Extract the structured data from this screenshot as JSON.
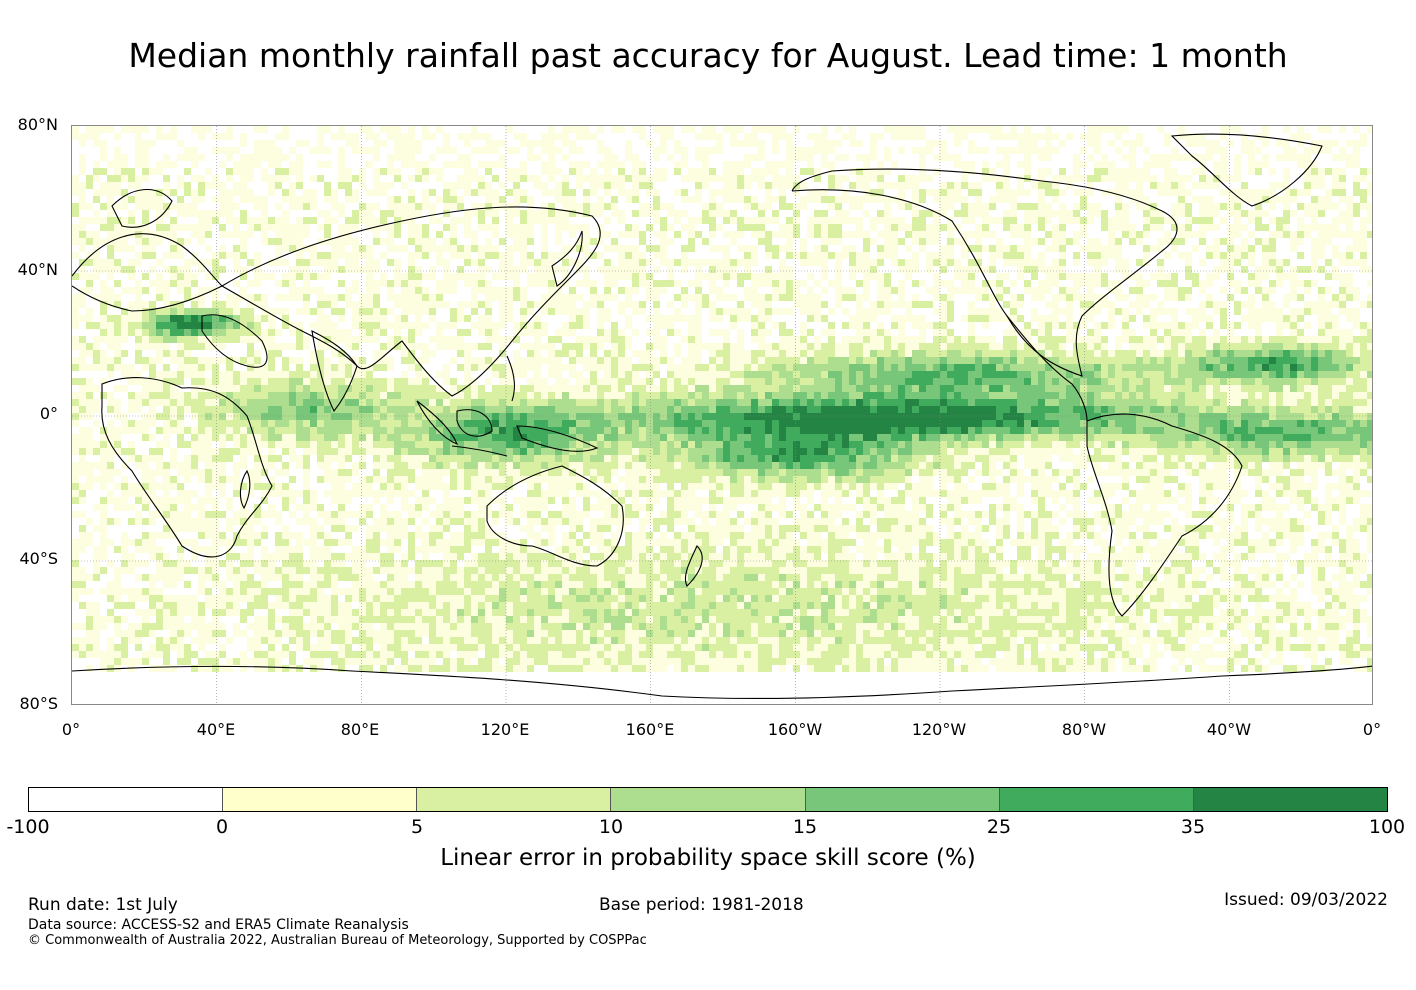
{
  "title": "Median monthly rainfall past accuracy for August. Lead time: 1 month",
  "map": {
    "lat_labels": [
      "80°N",
      "40°N",
      "0°",
      "40°S",
      "80°S"
    ],
    "lon_labels": [
      "0°",
      "40°E",
      "80°E",
      "120°E",
      "160°E",
      "160°W",
      "120°W",
      "80°W",
      "40°W",
      "0°"
    ]
  },
  "colorbar": {
    "label": "Linear error in probability space skill score (%)",
    "ticks": [
      "-100",
      "0",
      "5",
      "10",
      "15",
      "25",
      "35",
      "100"
    ],
    "colors": [
      "#ffffff",
      "#ffffcc",
      "#d9f0a3",
      "#addd8e",
      "#78c679",
      "#41ab5d",
      "#238443"
    ]
  },
  "footer": {
    "run_date": "Run date: 1st July",
    "data_source": "Data source: ACCESS-S2 and ERA5 Climate Reanalysis",
    "copyright": "© Commonwealth of Australia 2022, Australian Bureau of Meteorology, Supported by COSPPac",
    "base_period": "Base period: 1981-2018",
    "issued": "Issued: 09/03/2022"
  }
}
